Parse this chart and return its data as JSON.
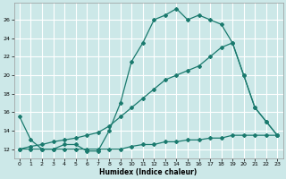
{
  "title": "",
  "xlabel": "Humidex (Indice chaleur)",
  "background_color": "#cce8e8",
  "grid_color": "#ffffff",
  "line_color": "#1a7a6e",
  "xlim": [
    -0.5,
    23.5
  ],
  "ylim": [
    11.0,
    27.8
  ],
  "yticks": [
    12,
    14,
    16,
    18,
    20,
    22,
    24,
    26
  ],
  "xticks": [
    0,
    1,
    2,
    3,
    4,
    5,
    6,
    7,
    8,
    9,
    10,
    11,
    12,
    13,
    14,
    15,
    16,
    17,
    18,
    19,
    20,
    21,
    22,
    23
  ],
  "line1_x": [
    0,
    1,
    2,
    3,
    4,
    5,
    6,
    7,
    8,
    9,
    10,
    11,
    12,
    13,
    14,
    15,
    16,
    17,
    18,
    19,
    20,
    21,
    22,
    23
  ],
  "line1_y": [
    15.5,
    13.0,
    12.0,
    12.0,
    12.5,
    12.5,
    11.8,
    11.8,
    14.0,
    17.0,
    21.5,
    23.5,
    26.0,
    26.5,
    27.2,
    26.0,
    26.5,
    26.0,
    25.5,
    23.5,
    20.0,
    16.5,
    15.0,
    13.5
  ],
  "line2_x": [
    0,
    1,
    2,
    3,
    4,
    5,
    6,
    7,
    8,
    9,
    10,
    11,
    12,
    13,
    14,
    15,
    16,
    17,
    18,
    19,
    20,
    21,
    22,
    23
  ],
  "line2_y": [
    12.0,
    12.3,
    12.5,
    12.8,
    13.0,
    13.2,
    13.5,
    13.8,
    14.5,
    15.5,
    16.5,
    17.5,
    18.5,
    19.5,
    20.0,
    20.5,
    21.0,
    22.0,
    23.0,
    23.5,
    20.0,
    16.5,
    15.0,
    13.5
  ],
  "line3_x": [
    0,
    1,
    2,
    3,
    4,
    5,
    6,
    7,
    8,
    9,
    10,
    11,
    12,
    13,
    14,
    15,
    16,
    17,
    18,
    19,
    20,
    21,
    22,
    23
  ],
  "line3_y": [
    12.0,
    12.0,
    12.0,
    12.0,
    12.0,
    12.0,
    12.0,
    12.0,
    12.0,
    12.0,
    12.3,
    12.5,
    12.5,
    12.8,
    12.8,
    13.0,
    13.0,
    13.2,
    13.2,
    13.5,
    13.5,
    13.5,
    13.5,
    13.5
  ]
}
